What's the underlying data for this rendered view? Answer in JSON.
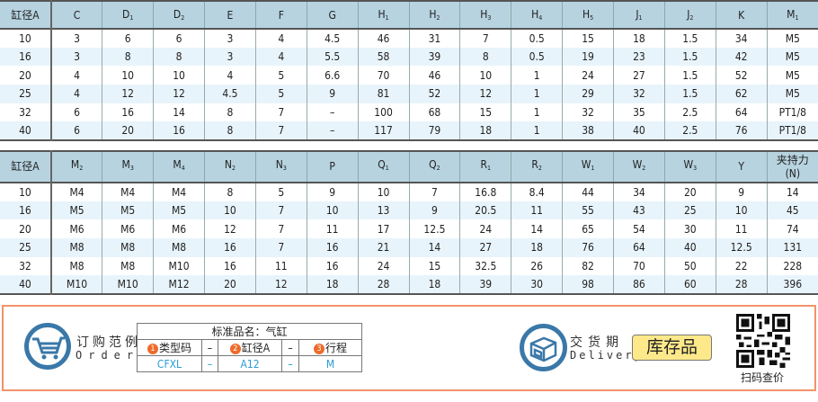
{
  "table1": {
    "headers": [
      [
        "缸径A",
        ""
      ],
      [
        "C",
        ""
      ],
      [
        "D",
        "1"
      ],
      [
        "D",
        "2"
      ],
      [
        "E",
        ""
      ],
      [
        "F",
        ""
      ],
      [
        "G",
        ""
      ],
      [
        "H",
        "1"
      ],
      [
        "H",
        "2"
      ],
      [
        "H",
        "3"
      ],
      [
        "H",
        "4"
      ],
      [
        "H",
        "5"
      ],
      [
        "J",
        "1"
      ],
      [
        "J",
        "2"
      ],
      [
        "K",
        ""
      ],
      [
        "M",
        "1"
      ]
    ],
    "rows": [
      [
        "10",
        "3",
        "6",
        "6",
        "3",
        "4",
        "4.5",
        "46",
        "31",
        "7",
        "0.5",
        "15",
        "18",
        "1.5",
        "34",
        "M5"
      ],
      [
        "16",
        "3",
        "8",
        "8",
        "3",
        "4",
        "5.5",
        "58",
        "39",
        "8",
        "0.5",
        "19",
        "23",
        "1.5",
        "42",
        "M5"
      ],
      [
        "20",
        "4",
        "10",
        "10",
        "4",
        "5",
        "6.6",
        "70",
        "46",
        "10",
        "1",
        "24",
        "27",
        "1.5",
        "52",
        "M5"
      ],
      [
        "25",
        "4",
        "12",
        "12",
        "4.5",
        "5",
        "9",
        "81",
        "52",
        "12",
        "1",
        "29",
        "32",
        "1.5",
        "62",
        "M5"
      ],
      [
        "32",
        "6",
        "16",
        "14",
        "8",
        "7",
        "–",
        "100",
        "68",
        "15",
        "1",
        "32",
        "35",
        "2.5",
        "64",
        "PT1/8"
      ],
      [
        "40",
        "6",
        "20",
        "16",
        "8",
        "7",
        "–",
        "117",
        "79",
        "18",
        "1",
        "38",
        "40",
        "2.5",
        "76",
        "PT1/8"
      ]
    ]
  },
  "table2": {
    "headers": [
      [
        "缸径A",
        ""
      ],
      [
        "M",
        "2"
      ],
      [
        "M",
        "3"
      ],
      [
        "M",
        "4"
      ],
      [
        "N",
        "2"
      ],
      [
        "N",
        "3"
      ],
      [
        "P",
        ""
      ],
      [
        "Q",
        "1"
      ],
      [
        "Q",
        "2"
      ],
      [
        "R",
        "1"
      ],
      [
        "R",
        "2"
      ],
      [
        "W",
        "1"
      ],
      [
        "W",
        "2"
      ],
      [
        "W",
        "3"
      ],
      [
        "Y",
        ""
      ],
      [
        "夹持力\n(N)",
        ""
      ]
    ],
    "rows": [
      [
        "10",
        "M4",
        "M4",
        "M4",
        "8",
        "5",
        "9",
        "10",
        "7",
        "16.8",
        "8.4",
        "44",
        "34",
        "20",
        "9",
        "14"
      ],
      [
        "16",
        "M5",
        "M5",
        "M5",
        "10",
        "7",
        "10",
        "13",
        "9",
        "20.5",
        "11",
        "55",
        "43",
        "25",
        "10",
        "45"
      ],
      [
        "20",
        "M6",
        "M6",
        "M6",
        "12",
        "7",
        "11",
        "17",
        "12.5",
        "24",
        "14",
        "65",
        "54",
        "30",
        "11",
        "74"
      ],
      [
        "25",
        "M8",
        "M8",
        "M8",
        "16",
        "7",
        "16",
        "21",
        "14",
        "27",
        "18",
        "76",
        "64",
        "40",
        "12.5",
        "131"
      ],
      [
        "32",
        "M8",
        "M8",
        "M10",
        "16",
        "11",
        "16",
        "24",
        "15",
        "32.5",
        "26",
        "82",
        "70",
        "50",
        "22",
        "228"
      ],
      [
        "40",
        "M10",
        "M10",
        "M12",
        "20",
        "12",
        "18",
        "28",
        "18",
        "39",
        "30",
        "98",
        "86",
        "60",
        "28",
        "396"
      ]
    ]
  },
  "order": {
    "title_cn": "订购范例",
    "title_en": "Order",
    "product_name": "标准品名：气缸",
    "fields": [
      {
        "num": "1",
        "label": "类型码",
        "value": "CFXL"
      },
      {
        "num": "2",
        "label": "缸径A",
        "value": "A12"
      },
      {
        "num": "3",
        "label": "行程",
        "value": "M"
      }
    ],
    "separator": "–"
  },
  "delivery": {
    "title_cn": "交货期",
    "title_en": "Delivery",
    "badge": "库存品"
  },
  "qr": {
    "label": "扫码查价"
  },
  "colors": {
    "header_bg": "#b7d3e0",
    "stripe": "#e8f4fb",
    "border_accent": "#f4926a",
    "icon": "#3a78a8",
    "badge": "#fde98a",
    "value_text": "#2a9bd6"
  }
}
